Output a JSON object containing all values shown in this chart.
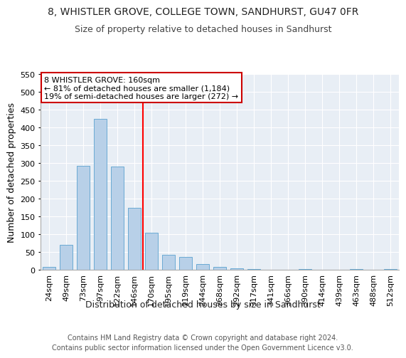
{
  "title": "8, WHISTLER GROVE, COLLEGE TOWN, SANDHURST, GU47 0FR",
  "subtitle": "Size of property relative to detached houses in Sandhurst",
  "xlabel": "Distribution of detached houses by size in Sandhurst",
  "ylabel": "Number of detached properties",
  "footer_line1": "Contains HM Land Registry data © Crown copyright and database right 2024.",
  "footer_line2": "Contains public sector information licensed under the Open Government Licence v3.0.",
  "categories": [
    "24sqm",
    "49sqm",
    "73sqm",
    "97sqm",
    "122sqm",
    "146sqm",
    "170sqm",
    "195sqm",
    "219sqm",
    "244sqm",
    "268sqm",
    "292sqm",
    "317sqm",
    "341sqm",
    "366sqm",
    "390sqm",
    "414sqm",
    "439sqm",
    "463sqm",
    "488sqm",
    "512sqm"
  ],
  "values": [
    8,
    70,
    292,
    425,
    290,
    175,
    105,
    43,
    37,
    16,
    8,
    4,
    3,
    1,
    0,
    3,
    0,
    0,
    3,
    0,
    3
  ],
  "bar_color": "#b8d0e8",
  "bar_edge_color": "#6aaad4",
  "ylim": [
    0,
    550
  ],
  "yticks": [
    0,
    50,
    100,
    150,
    200,
    250,
    300,
    350,
    400,
    450,
    500,
    550
  ],
  "red_line_index": 5.5,
  "annotation_text_line1": "8 WHISTLER GROVE: 160sqm",
  "annotation_text_line2": "← 81% of detached houses are smaller (1,184)",
  "annotation_text_line3": "19% of semi-detached houses are larger (272) →",
  "annotation_box_facecolor": "#ffffff",
  "annotation_box_edgecolor": "#cc0000",
  "bg_color": "#ffffff",
  "plot_bg_color": "#e8eef5",
  "grid_color": "#ffffff",
  "title_fontsize": 10,
  "subtitle_fontsize": 9,
  "tick_fontsize": 8,
  "ylabel_fontsize": 9,
  "xlabel_fontsize": 9,
  "annotation_fontsize": 8,
  "footer_fontsize": 7
}
